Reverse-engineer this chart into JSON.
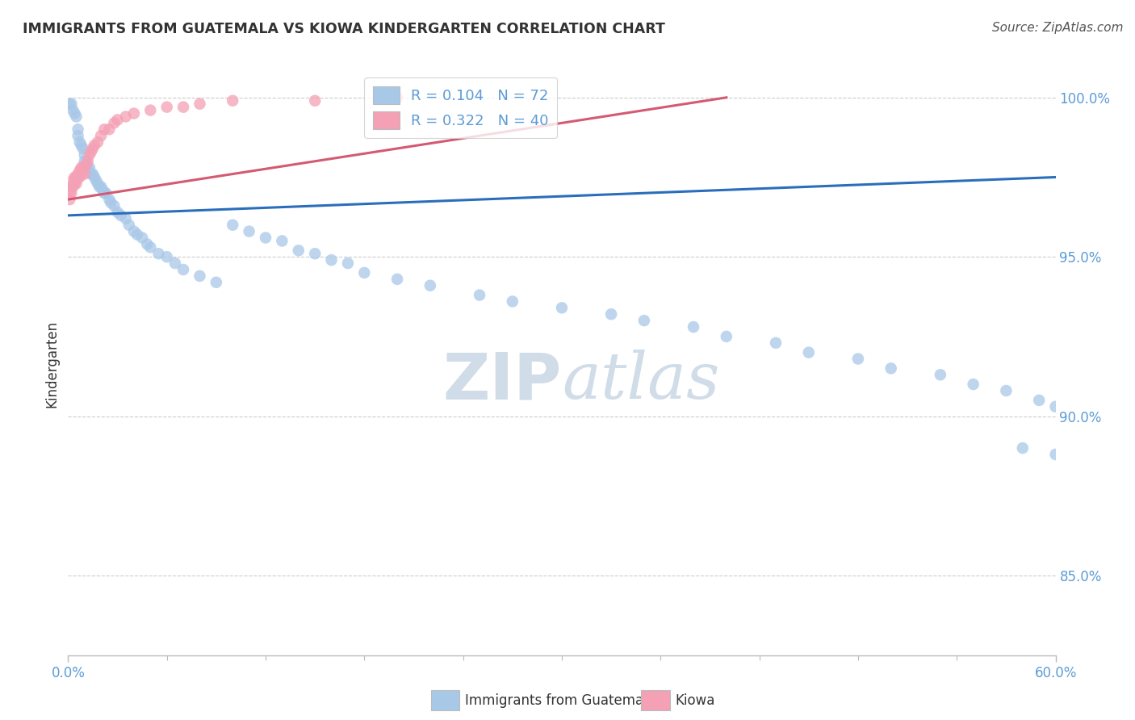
{
  "title": "IMMIGRANTS FROM GUATEMALA VS KIOWA KINDERGARTEN CORRELATION CHART",
  "source": "Source: ZipAtlas.com",
  "ylabel": "Kindergarten",
  "xlim": [
    0.0,
    0.6
  ],
  "ylim": [
    0.825,
    1.008
  ],
  "yticks": [
    0.85,
    0.9,
    0.95,
    1.0
  ],
  "ytick_labels": [
    "85.0%",
    "90.0%",
    "95.0%",
    "100.0%"
  ],
  "xtick_labels": [
    "0.0%",
    "60.0%"
  ],
  "legend_r_blue": "R = 0.104",
  "legend_n_blue": "N = 72",
  "legend_r_pink": "R = 0.322",
  "legend_n_pink": "N = 40",
  "blue_color": "#a8c8e8",
  "pink_color": "#f4a0b5",
  "trend_blue_color": "#2a6ebb",
  "trend_pink_color": "#d45a72",
  "watermark_zip": "ZIP",
  "watermark_atlas": "atlas",
  "watermark_color": "#d0dce8",
  "blue_scatter_x": [
    0.001,
    0.002,
    0.003,
    0.004,
    0.005,
    0.006,
    0.006,
    0.007,
    0.008,
    0.009,
    0.01,
    0.01,
    0.011,
    0.012,
    0.013,
    0.014,
    0.015,
    0.016,
    0.017,
    0.018,
    0.019,
    0.02,
    0.021,
    0.022,
    0.023,
    0.025,
    0.026,
    0.028,
    0.03,
    0.032,
    0.035,
    0.037,
    0.04,
    0.042,
    0.045,
    0.048,
    0.05,
    0.055,
    0.06,
    0.065,
    0.07,
    0.08,
    0.09,
    0.1,
    0.11,
    0.12,
    0.13,
    0.14,
    0.15,
    0.16,
    0.17,
    0.18,
    0.2,
    0.22,
    0.25,
    0.27,
    0.3,
    0.33,
    0.35,
    0.38,
    0.4,
    0.43,
    0.45,
    0.48,
    0.5,
    0.53,
    0.55,
    0.57,
    0.59,
    0.6,
    0.58,
    0.6
  ],
  "blue_scatter_y": [
    0.998,
    0.998,
    0.996,
    0.995,
    0.994,
    0.99,
    0.988,
    0.986,
    0.985,
    0.984,
    0.982,
    0.98,
    0.98,
    0.978,
    0.978,
    0.976,
    0.976,
    0.975,
    0.974,
    0.973,
    0.972,
    0.972,
    0.971,
    0.97,
    0.97,
    0.968,
    0.967,
    0.966,
    0.964,
    0.963,
    0.962,
    0.96,
    0.958,
    0.957,
    0.956,
    0.954,
    0.953,
    0.951,
    0.95,
    0.948,
    0.946,
    0.944,
    0.942,
    0.96,
    0.958,
    0.956,
    0.955,
    0.952,
    0.951,
    0.949,
    0.948,
    0.945,
    0.943,
    0.941,
    0.938,
    0.936,
    0.934,
    0.932,
    0.93,
    0.928,
    0.925,
    0.923,
    0.92,
    0.918,
    0.915,
    0.913,
    0.91,
    0.908,
    0.905,
    0.903,
    0.89,
    0.888
  ],
  "pink_scatter_x": [
    0.001,
    0.001,
    0.002,
    0.002,
    0.003,
    0.003,
    0.004,
    0.004,
    0.005,
    0.005,
    0.006,
    0.006,
    0.007,
    0.007,
    0.008,
    0.008,
    0.009,
    0.01,
    0.01,
    0.011,
    0.012,
    0.013,
    0.014,
    0.015,
    0.016,
    0.018,
    0.02,
    0.022,
    0.025,
    0.028,
    0.03,
    0.035,
    0.04,
    0.05,
    0.06,
    0.07,
    0.08,
    0.1,
    0.15,
    0.2
  ],
  "pink_scatter_y": [
    0.97,
    0.968,
    0.972,
    0.97,
    0.974,
    0.972,
    0.975,
    0.973,
    0.975,
    0.973,
    0.976,
    0.975,
    0.977,
    0.975,
    0.978,
    0.976,
    0.978,
    0.978,
    0.976,
    0.979,
    0.98,
    0.982,
    0.983,
    0.984,
    0.985,
    0.986,
    0.988,
    0.99,
    0.99,
    0.992,
    0.993,
    0.994,
    0.995,
    0.996,
    0.997,
    0.997,
    0.998,
    0.999,
    0.999,
    1.0
  ],
  "blue_trend_x": [
    0.0,
    0.6
  ],
  "blue_trend_y": [
    0.963,
    0.975
  ],
  "pink_trend_x": [
    0.0,
    0.4
  ],
  "pink_trend_y": [
    0.968,
    1.0
  ],
  "grid_color": "#aaaaaa",
  "background_color": "#ffffff",
  "title_color": "#333333",
  "tick_label_color": "#5b9bd5"
}
